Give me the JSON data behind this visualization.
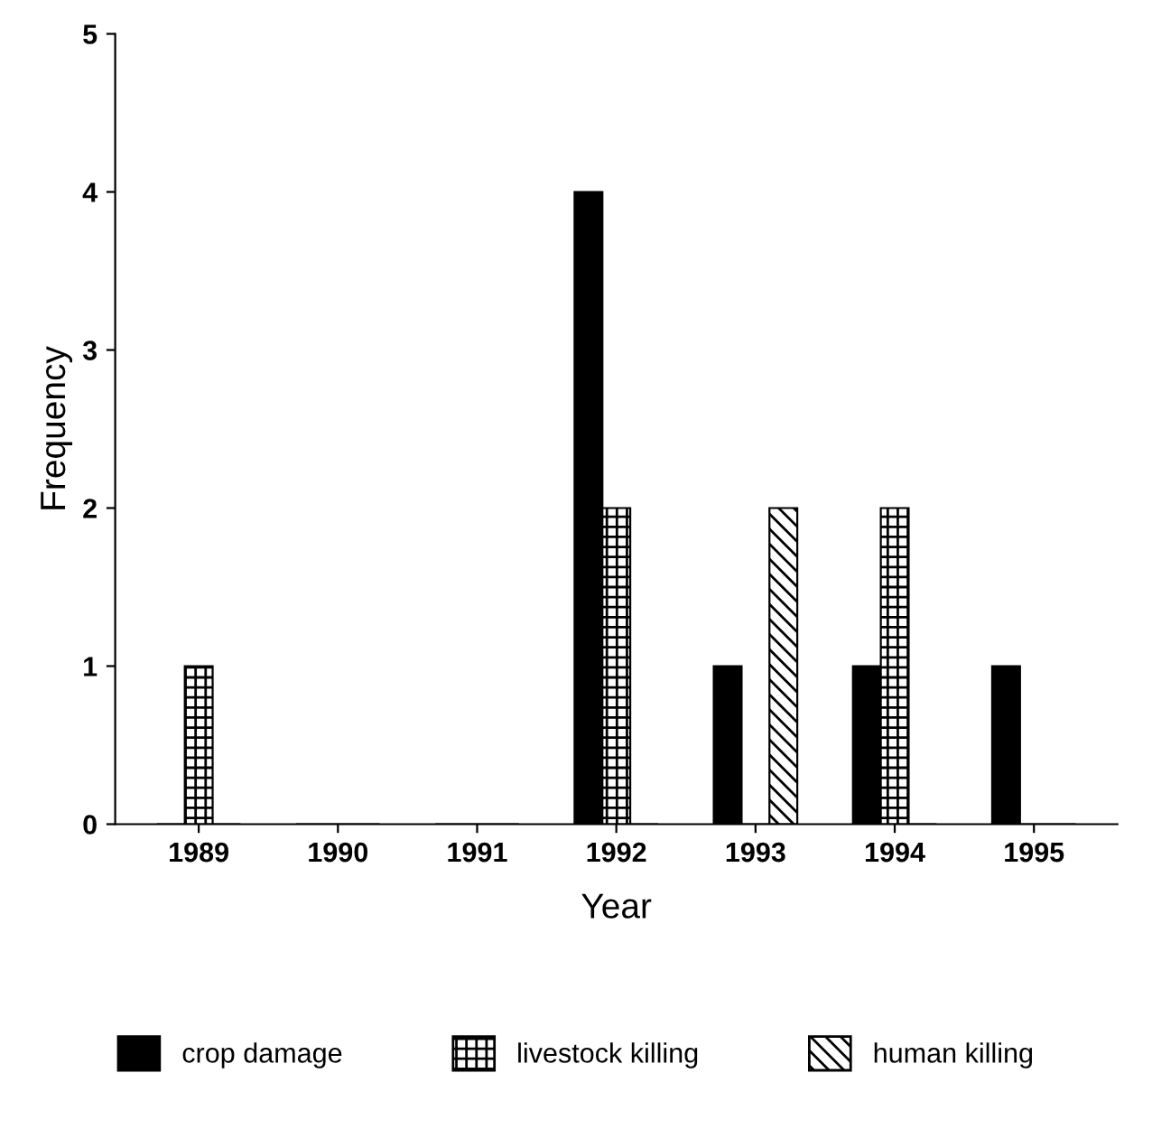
{
  "chart_data": {
    "type": "bar",
    "xlabel": "Year",
    "ylabel": "Frequency",
    "categories": [
      "1989",
      "1990",
      "1991",
      "1992",
      "1993",
      "1994",
      "1995"
    ],
    "series": [
      {
        "name": "crop damage",
        "color": "#000000",
        "values": [
          0,
          0,
          0,
          4,
          1,
          1,
          1
        ]
      },
      {
        "name": "livestock killing",
        "color": "#000000",
        "values": [
          1,
          0,
          0,
          2,
          0,
          2,
          0
        ]
      },
      {
        "name": "human killing",
        "color": "#000000",
        "values": [
          0,
          0,
          0,
          0,
          2,
          0,
          0
        ]
      }
    ],
    "ylim": [
      0,
      5
    ],
    "yticks": [
      0,
      1,
      2,
      3,
      4,
      5
    ],
    "grid": false,
    "legend": "bottom"
  }
}
